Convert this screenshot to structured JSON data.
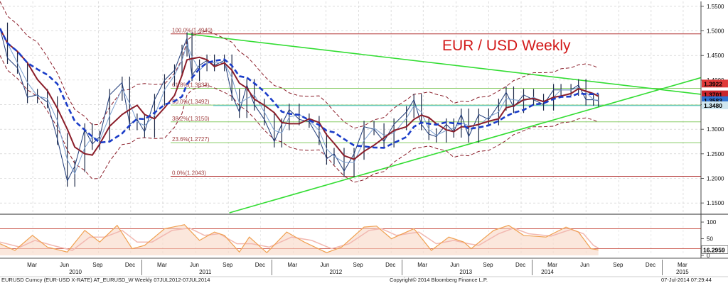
{
  "chart_data": [
    {
      "type": "line",
      "title": "EUR / USD Weekly",
      "price_axis": {
        "range": [
          1.13,
          1.56
        ],
        "ticks": [
          "1.5500",
          "1.5000",
          "1.4500",
          "1.4000",
          "1.3500",
          "1.3000",
          "1.2500",
          "1.2000",
          "1.1500"
        ],
        "side": "right",
        "grid": true
      },
      "x_axis": {
        "start": "2009-11-29",
        "end": "2015-04-20",
        "month_ticks": [
          {
            "label": "Mar",
            "date": "2010-03-01"
          },
          {
            "label": "Jun",
            "date": "2010-06-01"
          },
          {
            "label": "Sep",
            "date": "2010-09-01"
          },
          {
            "label": "Dec",
            "date": "2010-12-01"
          },
          {
            "label": "Mar",
            "date": "2011-03-01"
          },
          {
            "label": "Jun",
            "date": "2011-06-01"
          },
          {
            "label": "Sep",
            "date": "2011-09-01"
          },
          {
            "label": "Dec",
            "date": "2011-12-01"
          },
          {
            "label": "Mar",
            "date": "2012-03-01"
          },
          {
            "label": "Jun",
            "date": "2012-06-01"
          },
          {
            "label": "Sep",
            "date": "2012-09-01"
          },
          {
            "label": "Dec",
            "date": "2012-12-01"
          },
          {
            "label": "Mar",
            "date": "2013-03-01"
          },
          {
            "label": "Jun",
            "date": "2013-06-01"
          },
          {
            "label": "Sep",
            "date": "2013-09-01"
          },
          {
            "label": "Dec",
            "date": "2013-12-01"
          },
          {
            "label": "Mar",
            "date": "2014-03-01"
          },
          {
            "label": "Jun",
            "date": "2014-06-01"
          },
          {
            "label": "Sep",
            "date": "2014-09-01"
          },
          {
            "label": "Dec",
            "date": "2014-12-01"
          },
          {
            "label": "Mar",
            "date": "2015-03-01"
          }
        ],
        "years": [
          {
            "label": "2010",
            "date": "2010-07-01"
          },
          {
            "label": "2011",
            "date": "2011-07-01"
          },
          {
            "label": "2012",
            "date": "2012-07-01"
          },
          {
            "label": "2013",
            "date": "2013-07-01"
          },
          {
            "label": "2014",
            "date": "2014-02-15"
          },
          {
            "label": "2015",
            "date": "2015-03-01"
          }
        ],
        "year_dividers": [
          "2011-01-01",
          "2012-01-01",
          "2013-01-01",
          "2014-01-01",
          "2015-01-01"
        ]
      },
      "price_path": [
        [
          "2009-11-29",
          1.505
        ],
        [
          "2009-12-20",
          1.445
        ],
        [
          "2010-01-17",
          1.425
        ],
        [
          "2010-02-14",
          1.365
        ],
        [
          "2010-03-14",
          1.37
        ],
        [
          "2010-04-11",
          1.355
        ],
        [
          "2010-05-09",
          1.28
        ],
        [
          "2010-06-06",
          1.195
        ],
        [
          "2010-06-27",
          1.225
        ],
        [
          "2010-07-25",
          1.3
        ],
        [
          "2010-08-15",
          1.27
        ],
        [
          "2010-09-05",
          1.285
        ],
        [
          "2010-10-03",
          1.37
        ],
        [
          "2010-11-07",
          1.395
        ],
        [
          "2010-11-28",
          1.31
        ],
        [
          "2010-12-19",
          1.32
        ],
        [
          "2011-01-09",
          1.295
        ],
        [
          "2011-02-06",
          1.36
        ],
        [
          "2011-03-06",
          1.4
        ],
        [
          "2011-04-03",
          1.42
        ],
        [
          "2011-04-24",
          1.46
        ],
        [
          "2011-05-08",
          1.485
        ],
        [
          "2011-05-22",
          1.41
        ],
        [
          "2011-06-12",
          1.43
        ],
        [
          "2011-07-03",
          1.44
        ],
        [
          "2011-07-24",
          1.43
        ],
        [
          "2011-08-21",
          1.44
        ],
        [
          "2011-09-11",
          1.37
        ],
        [
          "2011-10-02",
          1.335
        ],
        [
          "2011-10-23",
          1.39
        ],
        [
          "2011-11-13",
          1.35
        ],
        [
          "2011-12-11",
          1.32
        ],
        [
          "2012-01-08",
          1.275
        ],
        [
          "2012-01-29",
          1.31
        ],
        [
          "2012-02-19",
          1.34
        ],
        [
          "2012-03-18",
          1.32
        ],
        [
          "2012-04-15",
          1.315
        ],
        [
          "2012-05-13",
          1.28
        ],
        [
          "2012-06-03",
          1.24
        ],
        [
          "2012-06-24",
          1.25
        ],
        [
          "2012-07-22",
          1.215
        ],
        [
          "2012-08-19",
          1.25
        ],
        [
          "2012-09-16",
          1.305
        ],
        [
          "2012-10-14",
          1.3
        ],
        [
          "2012-11-11",
          1.275
        ],
        [
          "2012-12-09",
          1.31
        ],
        [
          "2013-01-13",
          1.335
        ],
        [
          "2013-02-03",
          1.36
        ],
        [
          "2013-02-24",
          1.31
        ],
        [
          "2013-03-17",
          1.29
        ],
        [
          "2013-04-07",
          1.285
        ],
        [
          "2013-05-05",
          1.31
        ],
        [
          "2013-05-26",
          1.295
        ],
        [
          "2013-06-16",
          1.33
        ],
        [
          "2013-07-07",
          1.285
        ],
        [
          "2013-08-04",
          1.33
        ],
        [
          "2013-09-01",
          1.32
        ],
        [
          "2013-09-29",
          1.35
        ],
        [
          "2013-10-20",
          1.375
        ],
        [
          "2013-11-10",
          1.345
        ],
        [
          "2013-12-08",
          1.37
        ],
        [
          "2014-01-05",
          1.36
        ],
        [
          "2014-02-02",
          1.35
        ],
        [
          "2014-03-02",
          1.38
        ],
        [
          "2014-03-23",
          1.38
        ],
        [
          "2014-04-20",
          1.38
        ],
        [
          "2014-05-11",
          1.39
        ],
        [
          "2014-06-01",
          1.36
        ],
        [
          "2014-06-22",
          1.36
        ],
        [
          "2014-07-06",
          1.358
        ]
      ],
      "fibonacci": [
        {
          "label": "100.0%(1.4940)",
          "value": 1.494
        },
        {
          "label": "61.8%(1.3833)",
          "value": 1.3833
        },
        {
          "label": "50.0%(1.3492)",
          "value": 1.3492
        },
        {
          "label": "38.2%(1.3150)",
          "value": 1.315
        },
        {
          "label": "23.6%(1.2727)",
          "value": 1.2727
        },
        {
          "label": "0.0%(1.2043)",
          "value": 1.2043
        }
      ],
      "trendlines": [
        {
          "name": "resistance",
          "from": [
            "2011-05-08",
            1.494
          ],
          "to": [
            "2015-04-20",
            1.371
          ],
          "color": "#33dd33"
        },
        {
          "name": "support",
          "from": [
            "2011-09-04",
            1.13
          ],
          "to": [
            "2015-04-20",
            1.405
          ],
          "color": "#33dd33"
        }
      ],
      "series_colors": {
        "price": "#1e3a78",
        "ma_short": "#7a9fd0",
        "ma_mid": "#8b1e2a",
        "ma_long": "#1a3cc8",
        "bands": "#8b1e2a"
      },
      "price_tags": [
        {
          "value": 1.3922,
          "label": "1.3922",
          "bg": "#e03a3a"
        },
        {
          "value": 1.3701,
          "label": "1.3701",
          "bg": "#c9242c"
        },
        {
          "value": 1.3583,
          "label": "1.3583",
          "bg": "#3070d0"
        },
        {
          "value": 1.348,
          "label": "1.3480",
          "bg": "#cfe6f0"
        }
      ]
    },
    {
      "type": "line",
      "title": "",
      "y_axis": {
        "range": [
          0,
          115
        ],
        "ticks": [
          "100",
          "50",
          "0"
        ]
      },
      "levels": [
        80,
        20
      ],
      "k_path": [
        [
          "2009-11-29",
          35
        ],
        [
          "2010-01-10",
          15
        ],
        [
          "2010-02-28",
          60
        ],
        [
          "2010-04-11",
          25
        ],
        [
          "2010-06-06",
          10
        ],
        [
          "2010-07-25",
          75
        ],
        [
          "2010-09-05",
          40
        ],
        [
          "2010-10-24",
          90
        ],
        [
          "2010-12-05",
          20
        ],
        [
          "2011-01-09",
          30
        ],
        [
          "2011-03-06",
          80
        ],
        [
          "2011-05-01",
          92
        ],
        [
          "2011-06-12",
          45
        ],
        [
          "2011-07-24",
          70
        ],
        [
          "2011-08-21",
          60
        ],
        [
          "2011-10-02",
          10
        ],
        [
          "2011-10-30",
          55
        ],
        [
          "2011-12-18",
          8
        ],
        [
          "2012-02-12",
          70
        ],
        [
          "2012-04-01",
          40
        ],
        [
          "2012-06-03",
          8
        ],
        [
          "2012-07-15",
          25
        ],
        [
          "2012-09-16",
          85
        ],
        [
          "2012-10-21",
          88
        ],
        [
          "2012-12-02",
          50
        ],
        [
          "2013-02-03",
          80
        ],
        [
          "2013-03-24",
          15
        ],
        [
          "2013-05-12",
          55
        ],
        [
          "2013-06-23",
          40
        ],
        [
          "2013-07-14",
          20
        ],
        [
          "2013-09-15",
          75
        ],
        [
          "2013-10-27",
          90
        ],
        [
          "2013-12-08",
          60
        ],
        [
          "2014-02-09",
          55
        ],
        [
          "2014-04-06",
          85
        ],
        [
          "2014-05-11",
          70
        ],
        [
          "2014-06-15",
          20
        ],
        [
          "2014-07-06",
          16.3
        ]
      ],
      "d_path": [
        [
          "2009-11-29",
          40
        ],
        [
          "2010-01-24",
          25
        ],
        [
          "2010-03-07",
          45
        ],
        [
          "2010-04-25",
          30
        ],
        [
          "2010-06-20",
          15
        ],
        [
          "2010-08-08",
          55
        ],
        [
          "2010-09-19",
          55
        ],
        [
          "2010-11-07",
          75
        ],
        [
          "2010-12-19",
          40
        ],
        [
          "2011-01-30",
          40
        ],
        [
          "2011-03-27",
          75
        ],
        [
          "2011-05-15",
          82
        ],
        [
          "2011-06-26",
          60
        ],
        [
          "2011-08-07",
          65
        ],
        [
          "2011-09-25",
          35
        ],
        [
          "2011-11-06",
          35
        ],
        [
          "2011-12-25",
          25
        ],
        [
          "2012-02-26",
          55
        ],
        [
          "2012-04-22",
          45
        ],
        [
          "2012-06-17",
          20
        ],
        [
          "2012-08-05",
          35
        ],
        [
          "2012-09-30",
          75
        ],
        [
          "2012-11-04",
          80
        ],
        [
          "2012-12-16",
          60
        ],
        [
          "2013-02-17",
          70
        ],
        [
          "2013-04-07",
          35
        ],
        [
          "2013-05-26",
          45
        ],
        [
          "2013-07-07",
          35
        ],
        [
          "2013-08-04",
          30
        ],
        [
          "2013-09-29",
          65
        ],
        [
          "2013-11-10",
          82
        ],
        [
          "2013-12-22",
          65
        ],
        [
          "2014-02-23",
          58
        ],
        [
          "2014-04-20",
          78
        ],
        [
          "2014-05-25",
          65
        ],
        [
          "2014-06-22",
          30
        ],
        [
          "2014-07-06",
          22
        ]
      ],
      "value_tag": {
        "label": "16.2959",
        "value": 16.2959
      },
      "series_colors": {
        "k": "#f0a050",
        "d": "#f2b8b0"
      }
    }
  ],
  "footer": {
    "left": "EURUSD Curncy (EUR-USD X-RATE) AT_EURUSD_W  Weekly 07JUL2012-07JUL2014",
    "center": "Copyright© 2014 Bloomberg Finance L.P.",
    "right": "07-Jul-2014 07:29:44"
  }
}
